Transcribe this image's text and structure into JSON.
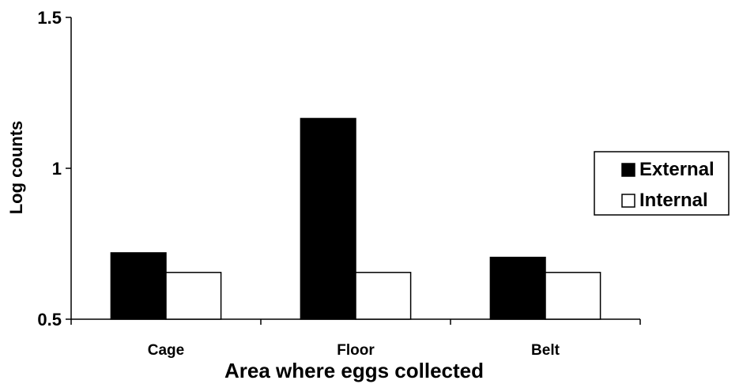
{
  "chart_data": {
    "type": "bar",
    "title": "",
    "xlabel": "Area where eggs collected",
    "ylabel": "Log counts",
    "categories": [
      "Cage",
      "Floor",
      "Belt"
    ],
    "series": [
      {
        "name": "External",
        "color": "#000000",
        "values": [
          0.72,
          1.165,
          0.705
        ]
      },
      {
        "name": "Internal",
        "color": "#ffffff",
        "values": [
          0.655,
          0.655,
          0.655
        ]
      }
    ],
    "ylim": [
      0.5,
      1.5
    ],
    "yticks": [
      0.5,
      1,
      1.5
    ],
    "ytick_labels": [
      "0.5",
      "1",
      "1.5"
    ],
    "legend": "right",
    "grid": false
  }
}
